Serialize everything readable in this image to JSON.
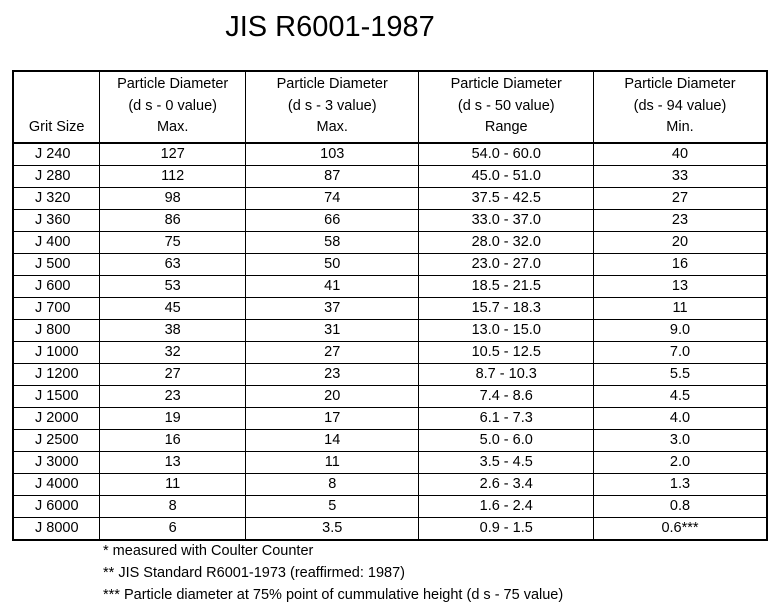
{
  "title": "JIS R6001-1987",
  "table": {
    "headers": [
      {
        "lines": [
          "",
          "",
          "Grit Size"
        ]
      },
      {
        "lines": [
          "Particle Diameter",
          "(d s - 0 value)",
          "Max."
        ]
      },
      {
        "lines": [
          "Particle Diameter",
          "(d s - 3 value)",
          "Max."
        ]
      },
      {
        "lines": [
          "Particle Diameter",
          "(d s - 50 value)",
          "Range"
        ]
      },
      {
        "lines": [
          "Particle Diameter",
          "(ds  - 94 value)",
          "Min."
        ]
      }
    ],
    "rows": [
      [
        "J 240",
        "127",
        "103",
        "54.0 - 60.0",
        "40"
      ],
      [
        "J 280",
        "112",
        "87",
        "45.0 - 51.0",
        "33"
      ],
      [
        "J 320",
        "98",
        "74",
        "37.5 - 42.5",
        "27"
      ],
      [
        "J 360",
        "86",
        "66",
        "33.0 - 37.0",
        "23"
      ],
      [
        "J 400",
        "75",
        "58",
        "28.0 - 32.0",
        "20"
      ],
      [
        "J 500",
        "63",
        "50",
        "23.0 - 27.0",
        "16"
      ],
      [
        "J 600",
        "53",
        "41",
        "18.5 - 21.5",
        "13"
      ],
      [
        "J 700",
        "45",
        "37",
        "15.7 - 18.3",
        "11"
      ],
      [
        "J 800",
        "38",
        "31",
        "13.0 - 15.0",
        "9.0"
      ],
      [
        "J 1000",
        "32",
        "27",
        "10.5 - 12.5",
        "7.0"
      ],
      [
        "J 1200",
        "27",
        "23",
        "8.7 - 10.3",
        "5.5"
      ],
      [
        "J 1500",
        "23",
        "20",
        "7.4 - 8.6",
        "4.5"
      ],
      [
        "J 2000",
        "19",
        "17",
        "6.1 - 7.3",
        "4.0"
      ],
      [
        "J 2500",
        "16",
        "14",
        "5.0 - 6.0",
        "3.0"
      ],
      [
        "J 3000",
        "13",
        "11",
        "3.5 - 4.5",
        "2.0"
      ],
      [
        "J 4000",
        "11",
        "8",
        "2.6 - 3.4",
        "1.3"
      ],
      [
        "J 6000",
        "8",
        "5",
        "1.6 - 2.4",
        "0.8"
      ],
      [
        "J 8000",
        "6",
        "3.5",
        "0.9 - 1.5",
        "0.6***"
      ]
    ]
  },
  "notes": [
    "* measured with Coulter Counter",
    "** JIS Standard R6001-1973 (reaffirmed: 1987)",
    "*** Particle diameter at 75% point of cummulative height (d s - 75 value)"
  ]
}
